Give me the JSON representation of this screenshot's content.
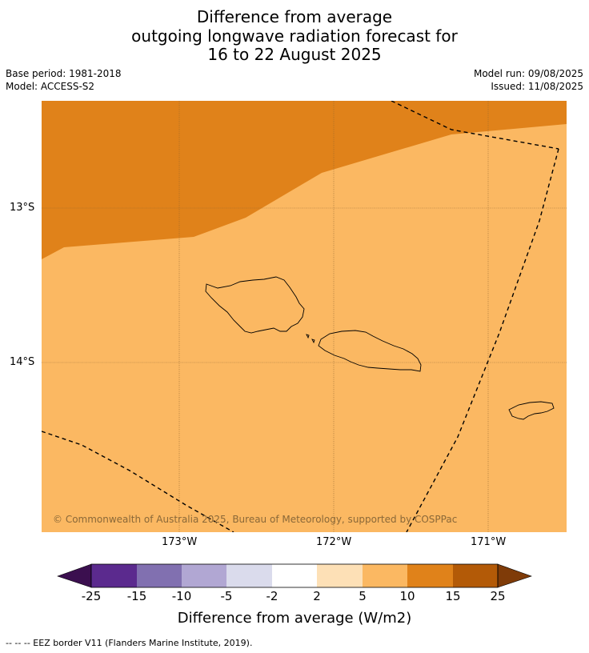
{
  "title": {
    "line1": "Difference from average",
    "line2": "outgoing longwave radiation forecast for",
    "line3": "16 to 22 August 2025"
  },
  "meta": {
    "base_period": "Base period: 1981-2018",
    "model": "Model: ACCESS-S2",
    "model_run": "Model run: 09/08/2025",
    "issued": "Issued: 11/08/2025"
  },
  "map": {
    "lat_labels": [
      "13°S",
      "14°S"
    ],
    "lon_labels": [
      "173°W",
      "172°W",
      "171°W"
    ],
    "copyright": "© Commonwealth of Australia 2025, Bureau of Meteorology, supported by COSPPac",
    "colors": {
      "anomaly_10_15": "#e0821a",
      "anomaly_5_10": "#fbb862",
      "gridline": "#9a6a30",
      "eez_border": "#000000",
      "coastline": "#000000"
    },
    "features": [
      "Savai'i",
      "Upolu",
      "Tutuila"
    ]
  },
  "colorbar": {
    "title": "Difference from average (W/m2)",
    "labels": [
      "-25",
      "-15",
      "-10",
      "-5",
      "-2",
      "2",
      "5",
      "10",
      "15",
      "25"
    ],
    "colors": [
      "#3b0f4f",
      "#5b2a8e",
      "#8170b0",
      "#b1a7d3",
      "#dadbec",
      "#ffffff",
      "#fde0b6",
      "#fbb862",
      "#e0821a",
      "#b35a07",
      "#7f3b08"
    ]
  },
  "footnote": "--  --  -- EEZ border V11 (Flanders Marine Institute, 2019)."
}
